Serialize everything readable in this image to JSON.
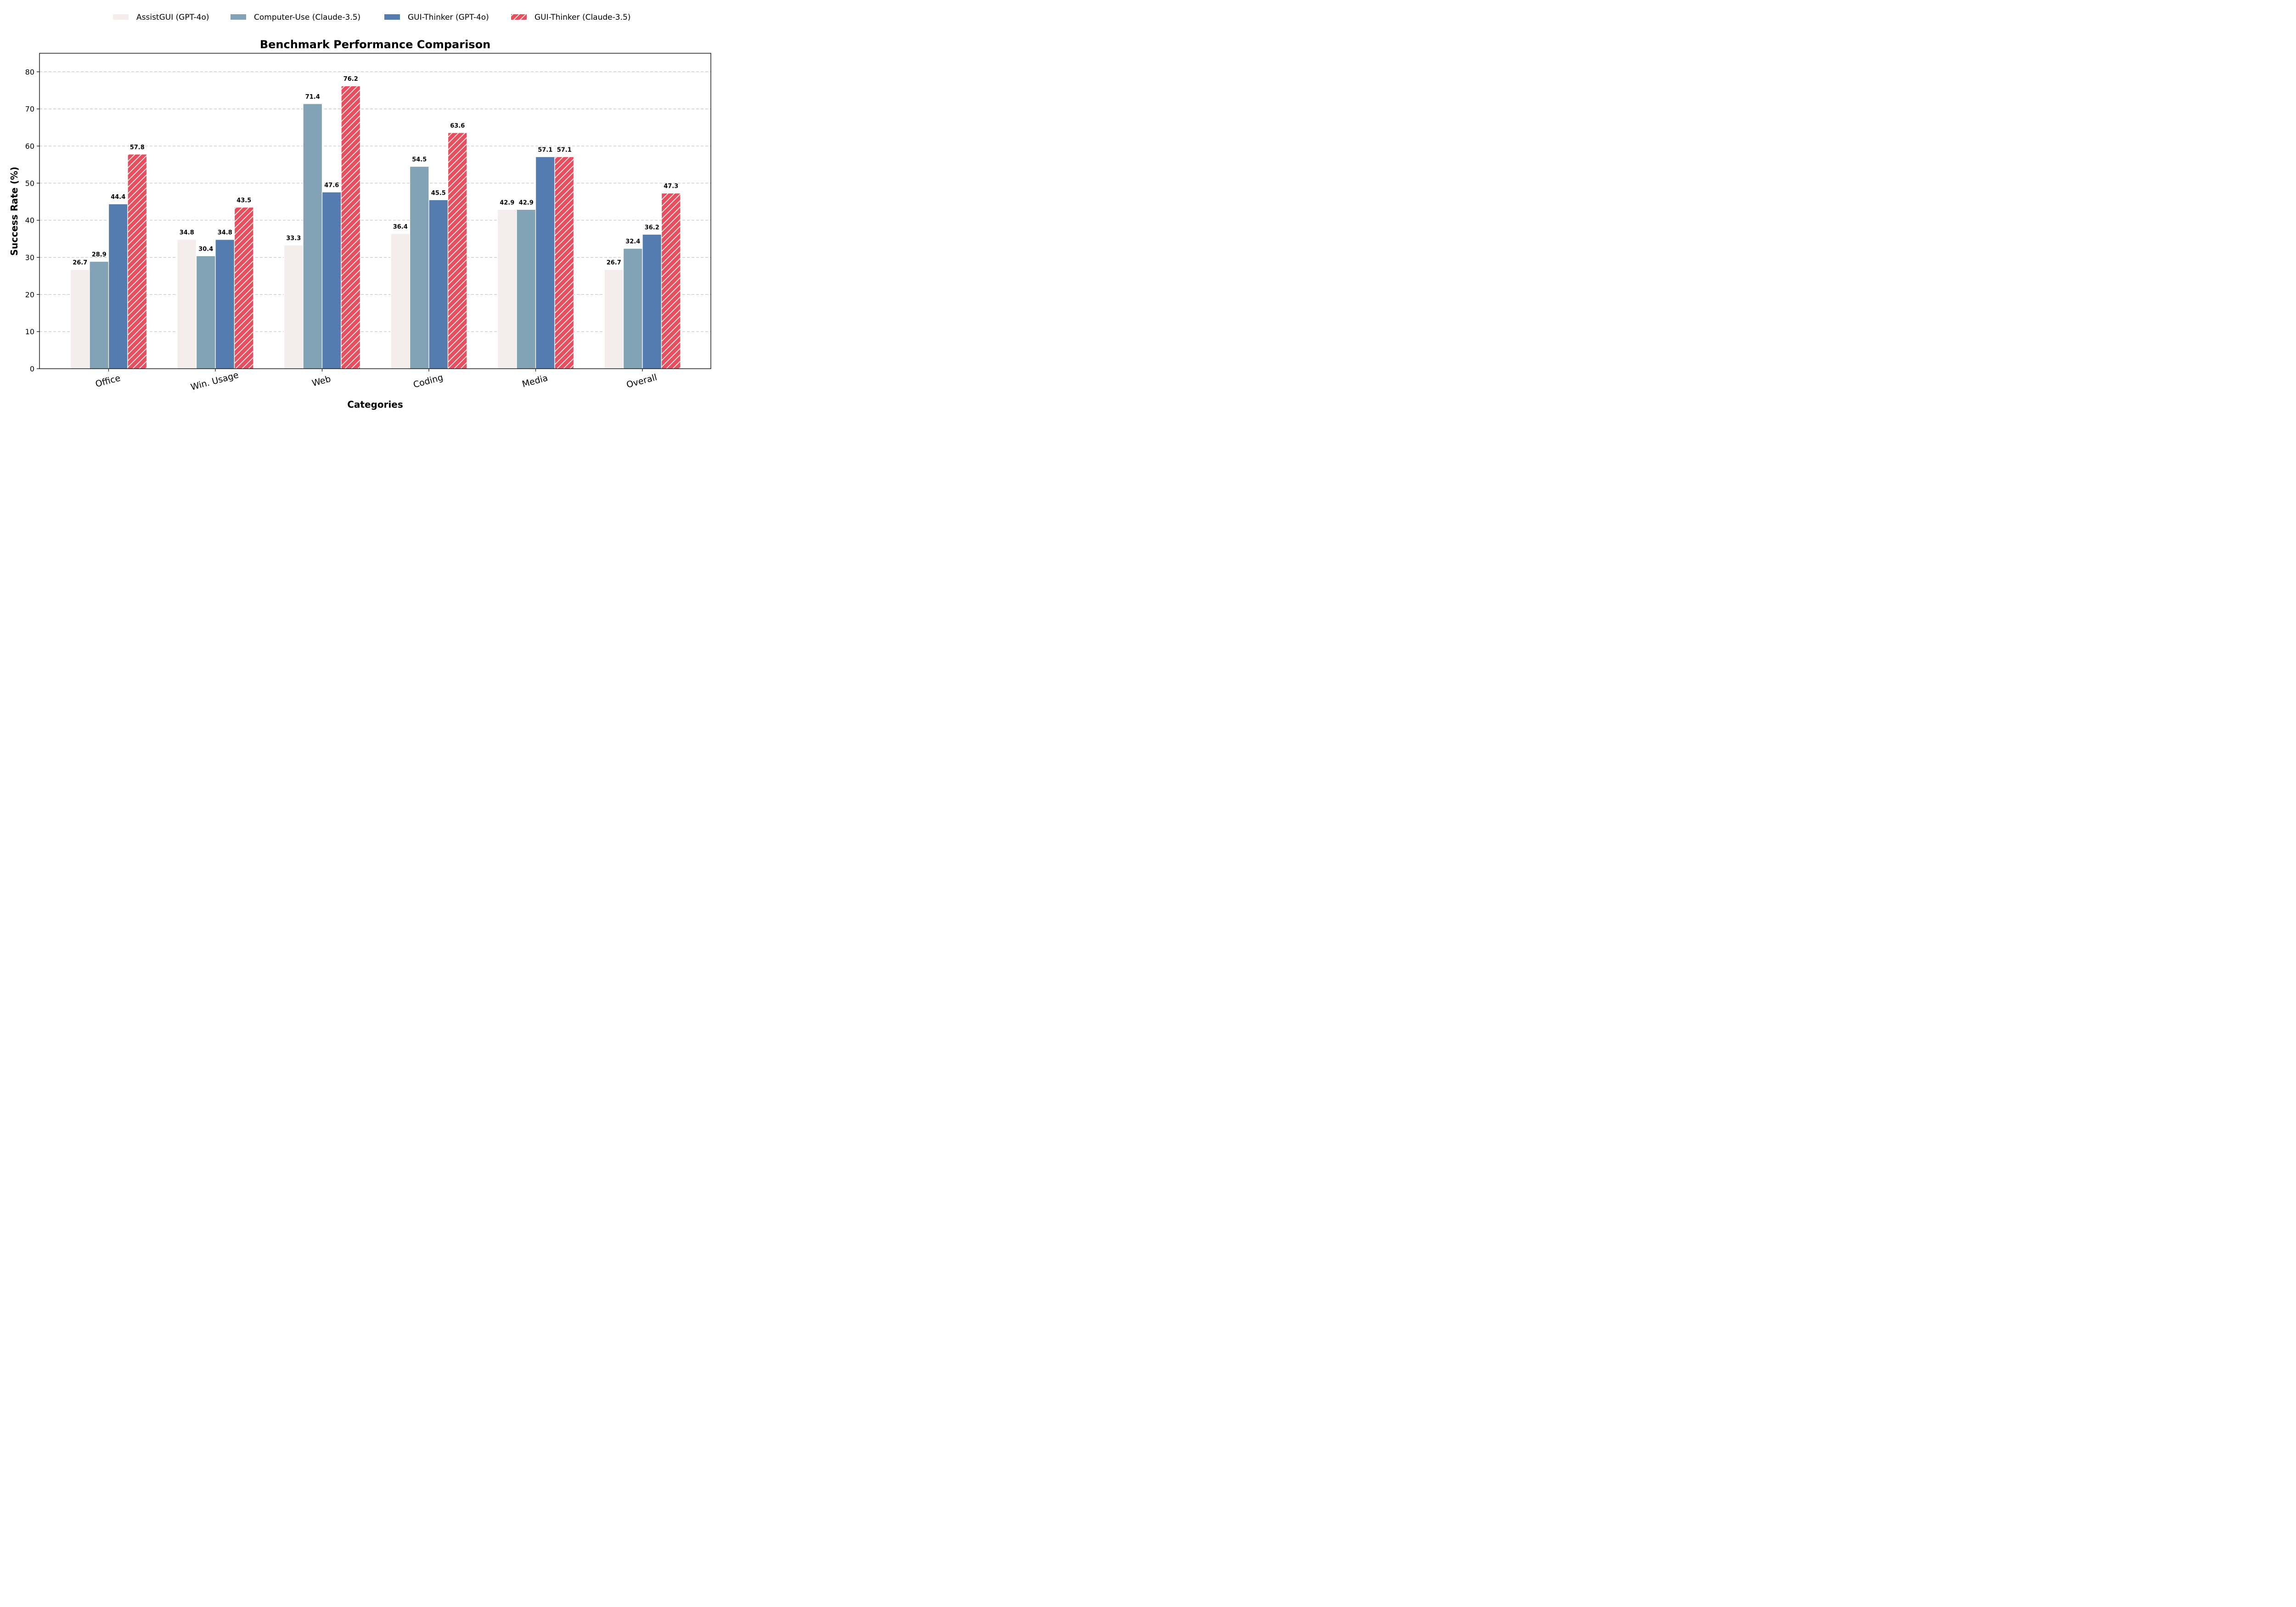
{
  "chart_data": {
    "type": "bar",
    "title": "Benchmark Performance Comparison",
    "xlabel": "Categories",
    "ylabel": "Success Rate (%)",
    "ylim": [
      0,
      85
    ],
    "yticks": [
      0,
      10,
      20,
      30,
      40,
      50,
      60,
      70,
      80
    ],
    "grid": "y-dashed",
    "legend_position": "top-center",
    "categories": [
      "Office",
      "Win. Usage",
      "Web",
      "Coding",
      "Media",
      "Overall"
    ],
    "series": [
      {
        "name": "AssistGUI (GPT-4o)",
        "color": "#f5edeb",
        "hatch": false,
        "values": [
          26.7,
          34.8,
          33.3,
          36.4,
          42.9,
          26.7
        ],
        "labels": [
          "26.7",
          "34.8",
          "33.3",
          "36.4",
          "42.9",
          "26.7"
        ]
      },
      {
        "name": "Computer-Use (Claude-3.5)",
        "color": "#82a3b5",
        "hatch": false,
        "values": [
          28.9,
          30.4,
          71.4,
          54.5,
          42.9,
          32.4
        ],
        "labels": [
          "28.9",
          "30.4",
          "71.4",
          "54.5",
          "42.9",
          "32.4"
        ]
      },
      {
        "name": "GUI-Thinker (GPT-4o)",
        "color": "#557caf",
        "hatch": false,
        "values": [
          44.4,
          34.8,
          47.6,
          45.5,
          57.1,
          36.2
        ],
        "labels": [
          "44.4",
          "34.8",
          "47.6",
          "45.5",
          "57.1",
          "36.2"
        ]
      },
      {
        "name": "GUI-Thinker (Claude-3.5)",
        "color": "#e84f5e",
        "hatch": true,
        "values": [
          57.8,
          43.5,
          76.2,
          63.6,
          57.1,
          47.3
        ],
        "labels": [
          "57.8",
          "43.5",
          "76.2",
          "63.6",
          "57.1",
          "47.3"
        ]
      }
    ]
  }
}
